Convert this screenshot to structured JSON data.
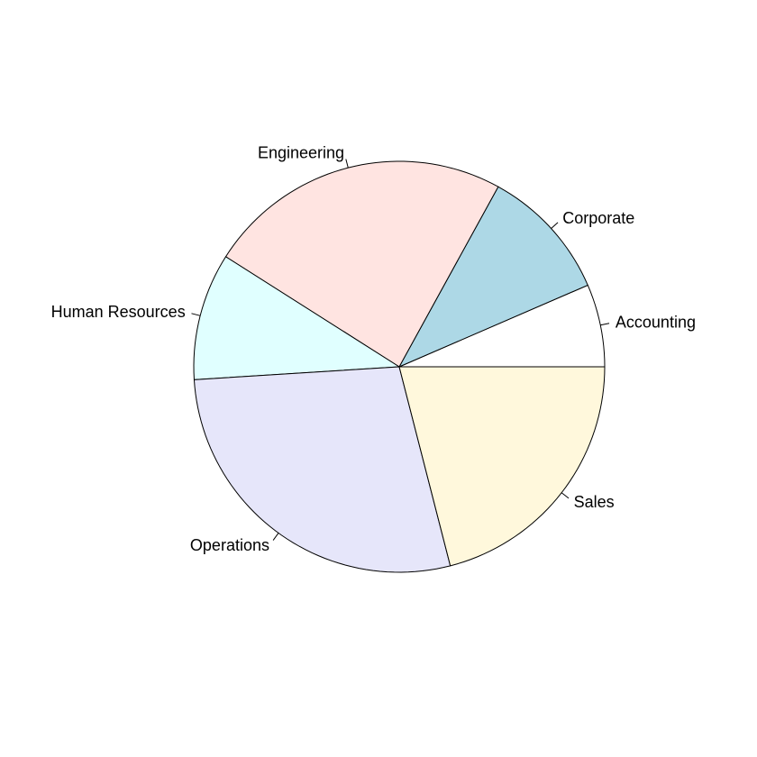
{
  "chart_data": {
    "type": "pie",
    "title": "",
    "slices": [
      {
        "label": "Accounting",
        "value": 6.5,
        "color": "#ffffff"
      },
      {
        "label": "Corporate",
        "value": 10.5,
        "color": "#add8e6"
      },
      {
        "label": "Engineering",
        "value": 24,
        "color": "#ffe4e1"
      },
      {
        "label": "Human Resources",
        "value": 10,
        "color": "#e0ffff"
      },
      {
        "label": "Operations",
        "value": 28,
        "color": "#e6e6fa"
      },
      {
        "label": "Sales",
        "value": 21,
        "color": "#fff8dc"
      }
    ],
    "start_angle_deg": 0,
    "direction": "counterclockwise",
    "border_color": "#000000"
  }
}
